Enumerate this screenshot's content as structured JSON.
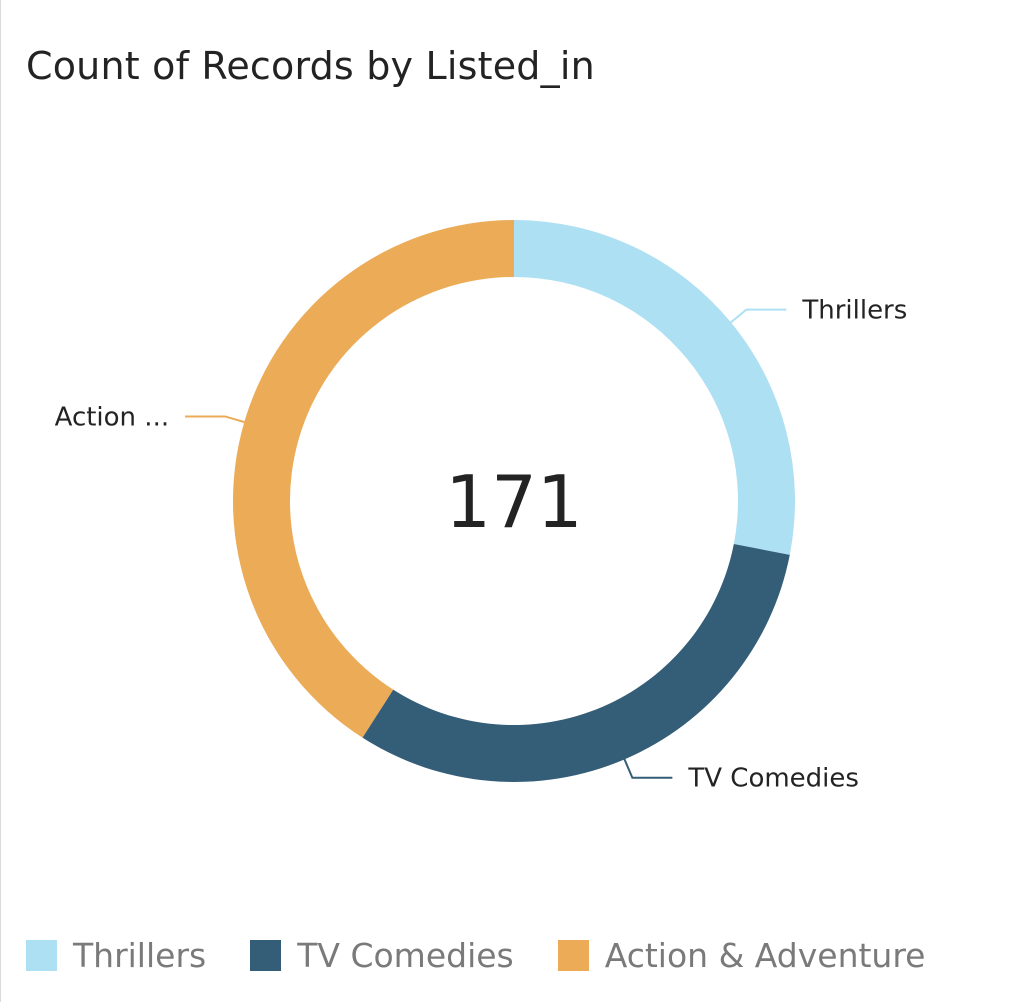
{
  "chart_data": {
    "type": "pie",
    "variant": "donut",
    "title": "Count of Records by Listed_in",
    "center_label": "171",
    "total": 171,
    "slices": [
      {
        "name": "Thrillers",
        "value": 48,
        "label": "Thrillers",
        "color": "#ade0f2"
      },
      {
        "name": "TV Comedies",
        "value": 53,
        "label": "TV Comedies",
        "color": "#345d78"
      },
      {
        "name": "Action & Adventure",
        "value": 70,
        "label": "Action ...",
        "color": "#ebab57"
      }
    ],
    "legend": {
      "placement": "bottom",
      "items": [
        {
          "label": "Thrillers",
          "color": "#ade0f2"
        },
        {
          "label": "TV Comedies",
          "color": "#345d78"
        },
        {
          "label": "Action & Adventure",
          "color": "#ebab57"
        }
      ]
    }
  }
}
